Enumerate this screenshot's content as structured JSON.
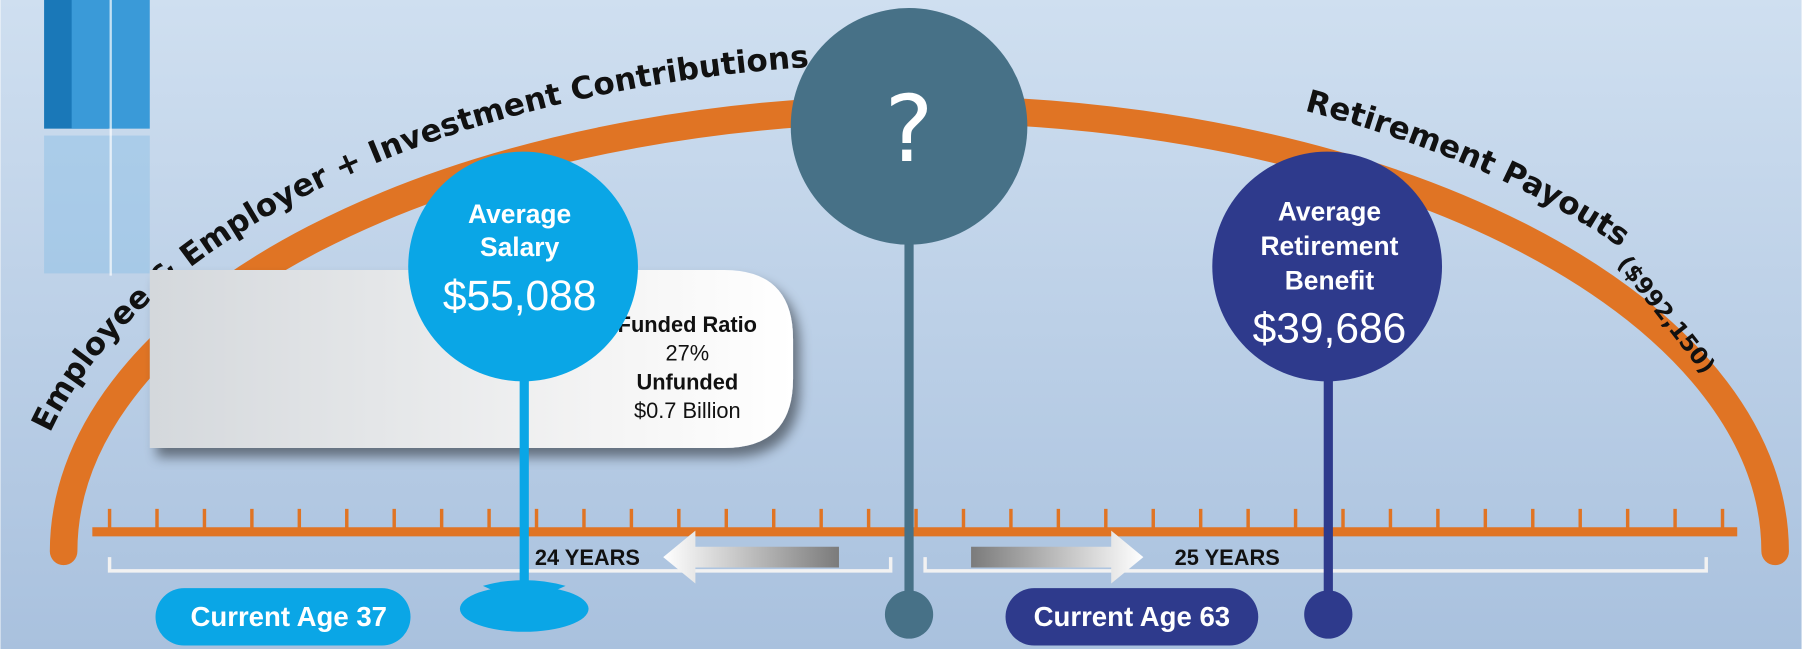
{
  "arc": {
    "left_label": "Employee & Employer + Investment Contributions",
    "right_label": "Retirement Payouts",
    "right_amount": "($992,150)"
  },
  "center": {
    "label": "?"
  },
  "salary": {
    "title_1": "Average",
    "title_2": "Salary",
    "amount": "$55,088"
  },
  "funding": {
    "ratio_label": "Funded Ratio",
    "ratio_value": "27%",
    "unfunded_label": "Unfunded",
    "unfunded_value": "$0.7 Billion"
  },
  "benefit": {
    "title_1": "Average",
    "title_2": "Retirement",
    "title_3": "Benefit",
    "amount": "$39,686"
  },
  "timeline": {
    "left_span": "24 YEARS",
    "right_span": "25 YEARS",
    "current_age": "Current Age 37",
    "retire_age": "Current Age 63"
  }
}
